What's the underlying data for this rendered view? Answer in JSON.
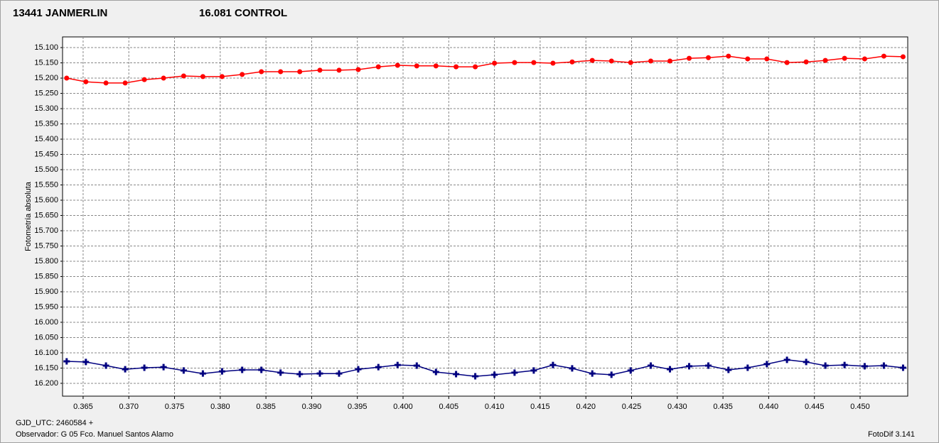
{
  "chart_data": {
    "type": "line",
    "y_label": "Fotometría absoluta",
    "x_label": "GJD_UTC: 2460584 +",
    "observer": "Observador: G 05  Fco. Manuel Santos Alamo",
    "software": "FotoDif 3.141",
    "y_inverted": true,
    "grid": true,
    "xlim": [
      0.36275,
      0.45521
    ],
    "ylim": [
      15.065,
      16.242
    ],
    "xticks": [
      {
        "value": 0.365,
        "label": "0.365"
      },
      {
        "value": 0.37,
        "label": "0.370"
      },
      {
        "value": 0.375,
        "label": "0.375"
      },
      {
        "value": 0.38,
        "label": "0.380"
      },
      {
        "value": 0.385,
        "label": "0.385"
      },
      {
        "value": 0.39,
        "label": "0.390"
      },
      {
        "value": 0.395,
        "label": "0.395"
      },
      {
        "value": 0.4,
        "label": "0.400"
      },
      {
        "value": 0.405,
        "label": "0.405"
      },
      {
        "value": 0.41,
        "label": "0.410"
      },
      {
        "value": 0.415,
        "label": "0.415"
      },
      {
        "value": 0.42,
        "label": "0.420"
      },
      {
        "value": 0.425,
        "label": "0.425"
      },
      {
        "value": 0.43,
        "label": "0.430"
      },
      {
        "value": 0.435,
        "label": "0.435"
      },
      {
        "value": 0.44,
        "label": "0.440"
      },
      {
        "value": 0.445,
        "label": "0.445"
      },
      {
        "value": 0.45,
        "label": "0.450"
      }
    ],
    "yticks": [
      {
        "value": 15.1,
        "label": "15.100"
      },
      {
        "value": 15.15,
        "label": "15.150"
      },
      {
        "value": 15.2,
        "label": "15.200"
      },
      {
        "value": 15.25,
        "label": "15.250"
      },
      {
        "value": 15.3,
        "label": "15.300"
      },
      {
        "value": 15.35,
        "label": "15.350"
      },
      {
        "value": 15.4,
        "label": "15.400"
      },
      {
        "value": 15.45,
        "label": "15.450"
      },
      {
        "value": 15.5,
        "label": "15.500"
      },
      {
        "value": 15.55,
        "label": "15.550"
      },
      {
        "value": 15.6,
        "label": "15.600"
      },
      {
        "value": 15.65,
        "label": "15.650"
      },
      {
        "value": 15.7,
        "label": "15.700"
      },
      {
        "value": 15.75,
        "label": "15.750"
      },
      {
        "value": 15.8,
        "label": "15.800"
      },
      {
        "value": 15.85,
        "label": "15.850"
      },
      {
        "value": 15.9,
        "label": "15.900"
      },
      {
        "value": 15.95,
        "label": "15.950"
      },
      {
        "value": 16.0,
        "label": "16.000"
      },
      {
        "value": 16.05,
        "label": "16.050"
      },
      {
        "value": 16.1,
        "label": "16.100"
      },
      {
        "value": 16.15,
        "label": "16.150"
      },
      {
        "value": 16.2,
        "label": "16.200"
      }
    ],
    "x": [
      0.3632,
      0.3653,
      0.3675,
      0.3696,
      0.3717,
      0.3738,
      0.376,
      0.3781,
      0.3802,
      0.3824,
      0.3845,
      0.3866,
      0.3887,
      0.3909,
      0.393,
      0.3951,
      0.3973,
      0.3994,
      0.4015,
      0.4036,
      0.4058,
      0.4079,
      0.41,
      0.4122,
      0.4143,
      0.4164,
      0.4185,
      0.4207,
      0.4228,
      0.4249,
      0.4271,
      0.4292,
      0.4313,
      0.4334,
      0.4356,
      0.4377,
      0.4398,
      0.442,
      0.4441,
      0.4462,
      0.4483,
      0.4505,
      0.4526,
      0.4547
    ],
    "series": [
      {
        "name": "13441 JANMERLIN",
        "color": "#ff0000",
        "marker": "circle",
        "values": [
          15.2,
          15.212,
          15.216,
          15.216,
          15.205,
          15.2,
          15.193,
          15.195,
          15.195,
          15.188,
          15.179,
          15.179,
          15.179,
          15.174,
          15.174,
          15.172,
          15.163,
          15.158,
          15.16,
          15.16,
          15.163,
          15.163,
          15.151,
          15.149,
          15.149,
          15.151,
          15.147,
          15.142,
          15.144,
          15.149,
          15.144,
          15.144,
          15.135,
          15.133,
          15.128,
          15.137,
          15.137,
          15.149,
          15.147,
          15.142,
          15.135,
          15.137,
          15.128,
          15.13
        ]
      },
      {
        "name": "16.081 CONTROL",
        "color": "#000080",
        "marker": "cross",
        "values": [
          16.128,
          16.13,
          16.142,
          16.154,
          16.149,
          16.147,
          16.158,
          16.168,
          16.161,
          16.156,
          16.156,
          16.165,
          16.17,
          16.168,
          16.168,
          16.154,
          16.147,
          16.14,
          16.142,
          16.163,
          16.17,
          16.177,
          16.172,
          16.165,
          16.158,
          16.14,
          16.151,
          16.168,
          16.172,
          16.158,
          16.142,
          16.154,
          16.144,
          16.142,
          16.156,
          16.149,
          16.137,
          16.123,
          16.13,
          16.142,
          16.14,
          16.144,
          16.142,
          16.149
        ]
      }
    ]
  }
}
